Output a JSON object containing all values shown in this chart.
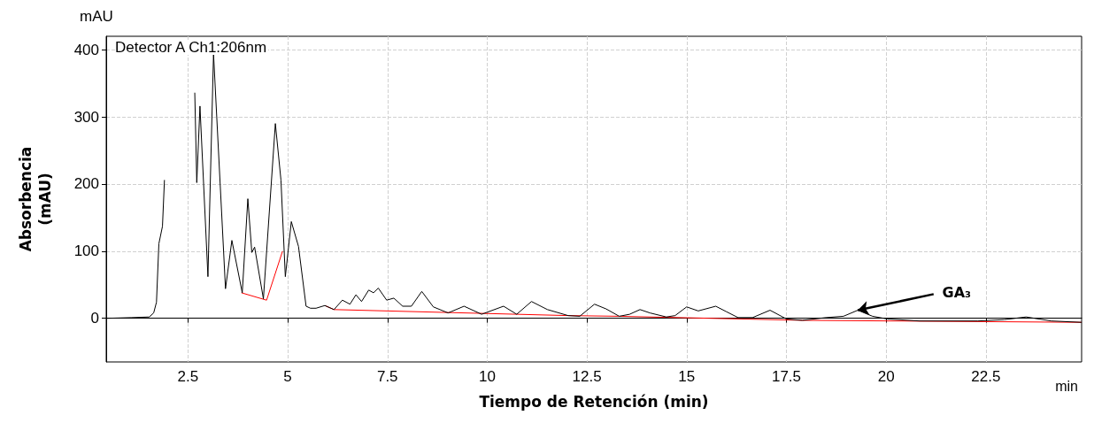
{
  "chart_data": {
    "type": "line",
    "xlabel": "Tiempo de Retención (min)",
    "ylabel": "Absorbencia\n(mAU)",
    "annotations": [
      "mAU",
      "Detector A Ch1:206nm",
      "min",
      {
        "text": "GA₃",
        "x": 19.29,
        "y": 12
      }
    ],
    "xlim": [
      0.45,
      24.9
    ],
    "ylim": [
      -65,
      420
    ],
    "xticks": [
      2.5,
      5.0,
      7.5,
      10.0,
      12.5,
      15.0,
      17.5,
      20.0,
      22.5
    ],
    "yticks": [
      0,
      100,
      200,
      300,
      400
    ],
    "grid": true,
    "marker": "none",
    "line_style": "solid",
    "series": [
      {
        "color": "#000000",
        "x": [
          0.47,
          1.09,
          1.53,
          1.64,
          1.71,
          1.77,
          1.86,
          1.91,
          2.2,
          2.67,
          2.72,
          2.8,
          3.0,
          3.14,
          3.44,
          3.6,
          3.86,
          4.0,
          4.1,
          4.17,
          4.39,
          4.69,
          4.83,
          4.94,
          5.09,
          5.27,
          5.46,
          5.57,
          5.71,
          5.93,
          6.16,
          6.37,
          6.56,
          6.71,
          6.85,
          7.03,
          7.15,
          7.27,
          7.48,
          7.66,
          7.88,
          8.1,
          8.36,
          8.65,
          9.02,
          9.42,
          9.86,
          10.41,
          10.74,
          11.11,
          11.51,
          12.03,
          12.32,
          12.69,
          12.98,
          13.31,
          13.57,
          13.83,
          14.08,
          14.49,
          14.71,
          15.0,
          15.29,
          15.73,
          15.99,
          16.29,
          16.65,
          17.09,
          17.5,
          17.9,
          18.49,
          18.93,
          19.29,
          19.66,
          20.03,
          20.84,
          22.3,
          22.96,
          23.51,
          24.14,
          24.9
        ],
        "values": [
          0,
          1,
          2,
          8,
          24,
          111,
          137,
          206,
          null,
          336,
          202,
          316,
          62,
          394,
          44,
          116,
          38,
          178,
          98,
          106,
          29,
          290,
          206,
          62,
          144,
          107,
          18,
          15,
          15,
          19,
          13,
          27,
          21,
          35,
          25,
          42,
          38,
          45,
          27,
          30,
          18,
          18,
          40,
          17,
          8,
          18,
          6,
          18,
          6,
          25,
          13,
          4,
          3,
          21,
          14,
          3,
          6,
          13,
          8,
          2,
          4,
          17,
          11,
          18,
          10,
          1,
          1,
          12,
          -1,
          -3,
          1,
          3,
          12,
          3,
          -1,
          -4,
          -4,
          -2,
          2,
          -4,
          -6
        ]
      },
      {
        "color": "#ff0000",
        "x": [
          3.84,
          4.47,
          4.87,
          5.0,
          5.93,
          6.16,
          12.05,
          13.3,
          17.9,
          24.9
        ],
        "values": [
          38,
          27,
          100,
          null,
          19,
          13,
          4,
          3,
          -3,
          -6
        ]
      }
    ]
  }
}
